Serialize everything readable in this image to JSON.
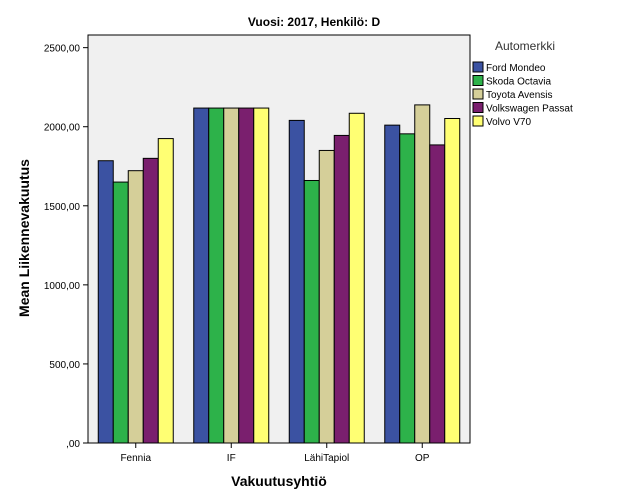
{
  "chart_data": {
    "type": "bar",
    "title": "Vuosi: 2017, Henkilö: D",
    "xlabel": "Vakuutusyhtiö",
    "ylabel": "Mean Liikennevakuutus",
    "categories": [
      "Fennia",
      "IF",
      "LähiTapiol",
      "OP"
    ],
    "yticks": [
      ",00",
      "500,00",
      "1000,00",
      "1500,00",
      "2000,00",
      "2500,00"
    ],
    "ytick_values": [
      0,
      500,
      1000,
      1500,
      2000,
      2500
    ],
    "ylim": [
      0,
      2580
    ],
    "grid": false,
    "legend": {
      "title": "Automerkki",
      "placement": "right"
    },
    "series": [
      {
        "name": "Ford Mondeo",
        "color": "#3b52a2",
        "values": [
          1785,
          2118,
          2040,
          2010
        ]
      },
      {
        "name": "Skoda Octavia",
        "color": "#2db24a",
        "values": [
          1650,
          2118,
          1660,
          1955
        ]
      },
      {
        "name": "Toyota Avensis",
        "color": "#d5cf99",
        "values": [
          1722,
          2118,
          1850,
          2138
        ]
      },
      {
        "name": "Volkswagen Passat",
        "color": "#7a1f6e",
        "values": [
          1800,
          2118,
          1945,
          1885
        ]
      },
      {
        "name": "Volvo V70",
        "color": "#ffff73",
        "values": [
          1925,
          2118,
          2085,
          2052
        ]
      }
    ]
  }
}
